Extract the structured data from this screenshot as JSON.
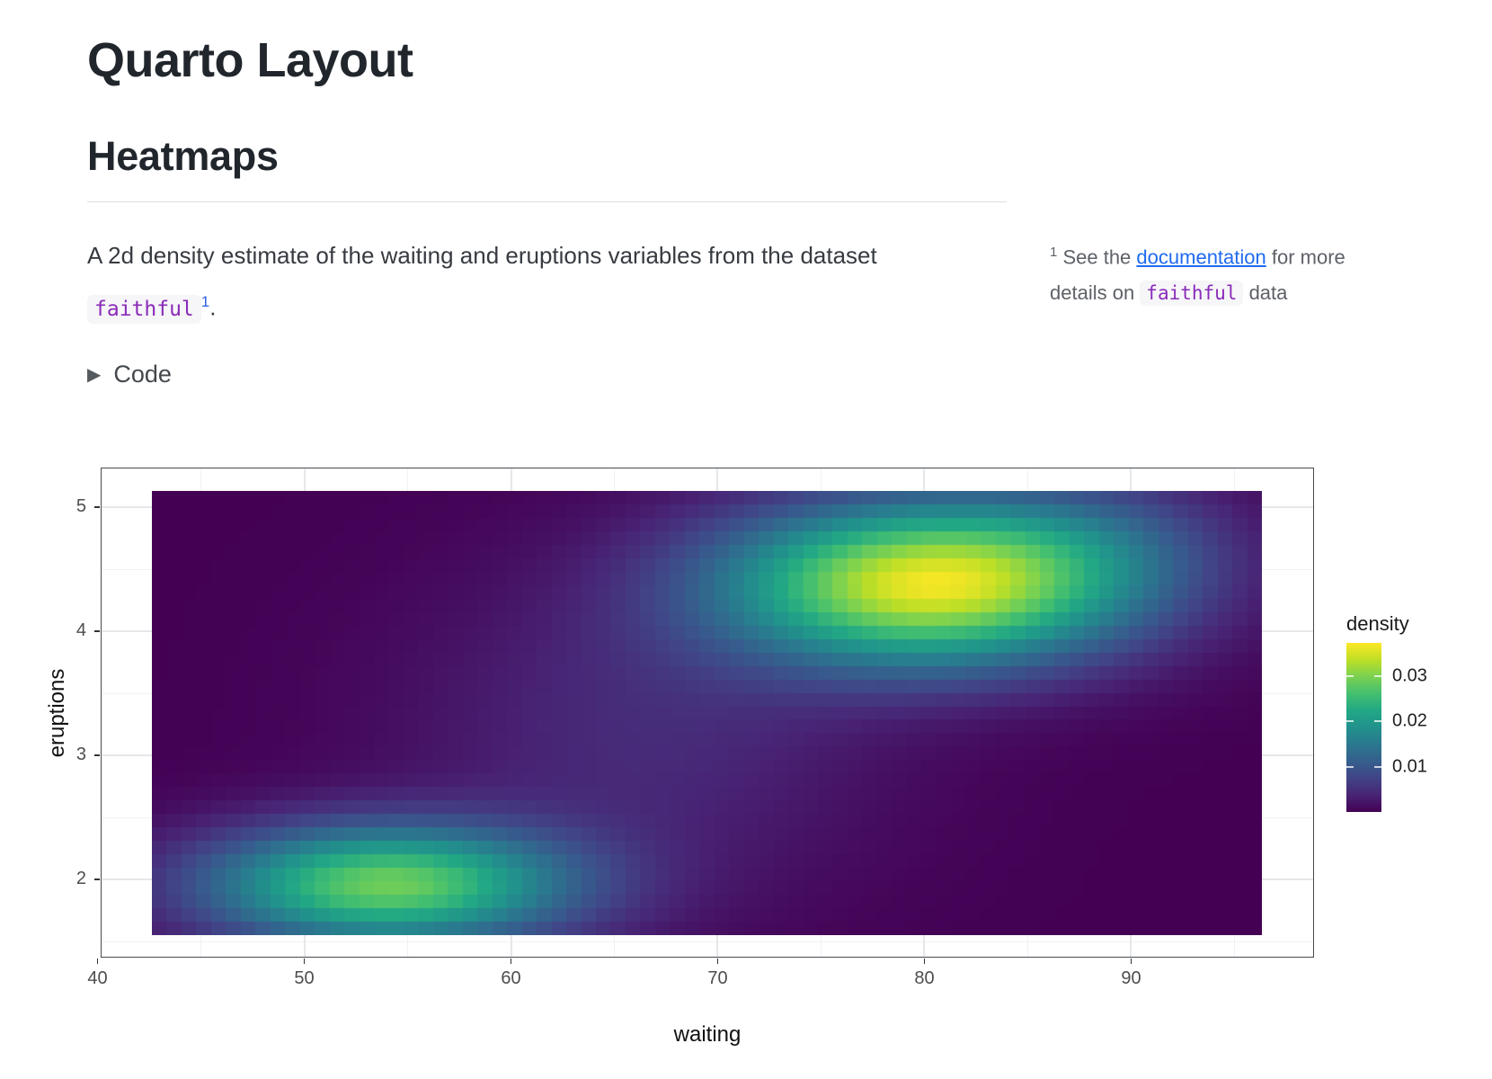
{
  "page": {
    "title": "Quarto Layout",
    "section_heading": "Heatmaps",
    "paragraph": {
      "text_before": "A 2d density estimate of the waiting and eruptions variables from the dataset ",
      "code": "faithful",
      "footnote_ref": "1",
      "text_after": "."
    },
    "margin_note": {
      "marker": "1",
      "text_1": " See the ",
      "link_text": "documentation",
      "text_2": " for more details on ",
      "code": "faithful",
      "text_3": " data"
    },
    "code_toggle": {
      "label": "Code",
      "marker": "▶"
    }
  },
  "colors": {
    "link_blue": "#1f6bf0",
    "footnote_blue": "#2e5fe8",
    "code_purple": "#8a2bb9",
    "code_background": "#f6f6f8",
    "note_gray": "#5d6167",
    "heading": "#21262c",
    "panel_border": "#464b50",
    "grid_major": "#e6e7ea",
    "grid_minor": "#f0f1f3",
    "axis_text": "#4d4d4d",
    "axis_title": "#111111"
  },
  "chart_data": {
    "type": "heatmap",
    "title": "",
    "xlabel": "waiting",
    "ylabel": "eruptions",
    "x_ticks": [
      40,
      50,
      60,
      70,
      80,
      90
    ],
    "x_minor_ticks": [
      45,
      55,
      65,
      75,
      85,
      95
    ],
    "y_ticks": [
      2,
      3,
      4,
      5
    ],
    "y_minor_ticks": [
      1.5,
      2.5,
      3.5,
      4.5
    ],
    "panel_x_range": [
      40.15,
      98.85
    ],
    "panel_y_range": [
      1.37,
      5.32
    ],
    "heatmap_x_range": [
      42.65,
      96.35
    ],
    "heatmap_y_range": [
      1.55,
      5.13
    ],
    "grid_cols": 75,
    "grid_rows": 33,
    "legend": {
      "title": "density",
      "tick_values": [
        0.01,
        0.02,
        0.03
      ],
      "scale_min": 0,
      "scale_max": 0.0373
    },
    "density_model": {
      "description": "2d KDE of Old Faithful geyser data rendered as tiles; density(waiting, eruptions) = sum of Gaussian components A*exp(-0.5*((w-w0)/sw)^2-0.5*((e-e0)/se)^2); two modes near (54,1.95) and (80,4.4)",
      "components": [
        {
          "A": 0.0285,
          "w0": 54.0,
          "sw": 6.3,
          "e0": 1.95,
          "se": 0.34
        },
        {
          "A": 0.0355,
          "w0": 80.3,
          "sw": 7.0,
          "e0": 4.38,
          "se": 0.46
        },
        {
          "A": 0.0045,
          "w0": 66.5,
          "sw": 8.0,
          "e0": 3.2,
          "se": 0.9
        },
        {
          "A": 0.005,
          "w0": 88.5,
          "sw": 5.0,
          "e0": 4.75,
          "se": 0.4
        }
      ]
    },
    "colormap": {
      "name": "viridis",
      "stops": [
        [
          0.0,
          "#440154"
        ],
        [
          0.1,
          "#482475"
        ],
        [
          0.2,
          "#414487"
        ],
        [
          0.3,
          "#355f8d"
        ],
        [
          0.4,
          "#2a788e"
        ],
        [
          0.5,
          "#21918c"
        ],
        [
          0.6,
          "#22a884"
        ],
        [
          0.7,
          "#44bf70"
        ],
        [
          0.8,
          "#7ad151"
        ],
        [
          0.9,
          "#bddf26"
        ],
        [
          1.0,
          "#fde725"
        ]
      ]
    }
  }
}
